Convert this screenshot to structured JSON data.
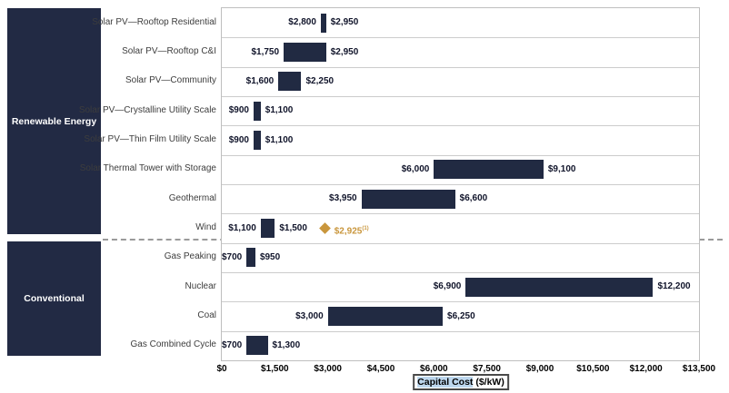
{
  "sidebar": {
    "groups": [
      {
        "label": "Renewable Energy"
      },
      {
        "label": "Conventional"
      }
    ]
  },
  "chart_data": {
    "type": "bar",
    "subtype": "horizontal-range-bar",
    "title": "",
    "xlabel": "Capital Cost ($/kW)",
    "xlabel_highlight": "Capital Cost",
    "xlabel_unit": " ($/kW)",
    "xlim": [
      0,
      13500
    ],
    "x_tick_values": [
      0,
      1500,
      3000,
      4500,
      6000,
      7500,
      9000,
      10500,
      12000,
      13500
    ],
    "x_tick_labels": [
      "$0",
      "$1,500",
      "$3,000",
      "$4,500",
      "$6,000",
      "$7,500",
      "$9,000",
      "$10,500",
      "$12,000",
      "$13,500"
    ],
    "grid": "horizontal row separators, light gray",
    "legend": "none",
    "bar_color": "#212A42",
    "marker_color": "#C9963C",
    "rows": [
      {
        "label": "Solar PV—Rooftop Residential",
        "group": "Renewable Energy",
        "min": 2800,
        "max": 2950,
        "min_label": "$2,800",
        "max_label": "$2,950"
      },
      {
        "label": "Solar PV—Rooftop C&I",
        "group": "Renewable Energy",
        "min": 1750,
        "max": 2950,
        "min_label": "$1,750",
        "max_label": "$2,950"
      },
      {
        "label": "Solar PV—Community",
        "group": "Renewable Energy",
        "min": 1600,
        "max": 2250,
        "min_label": "$1,600",
        "max_label": "$2,250"
      },
      {
        "label": "Solar PV—Crystalline Utility Scale",
        "group": "Renewable Energy",
        "min": 900,
        "max": 1100,
        "min_label": "$900",
        "max_label": "$1,100"
      },
      {
        "label": "Solar PV—Thin Film Utility Scale",
        "group": "Renewable Energy",
        "min": 900,
        "max": 1100,
        "min_label": "$900",
        "max_label": "$1,100"
      },
      {
        "label": "Solar Thermal Tower with Storage",
        "group": "Renewable Energy",
        "min": 6000,
        "max": 9100,
        "min_label": "$6,000",
        "max_label": "$9,100"
      },
      {
        "label": "Geothermal",
        "group": "Renewable Energy",
        "min": 3950,
        "max": 6600,
        "min_label": "$3,950",
        "max_label": "$6,600"
      },
      {
        "label": "Wind",
        "group": "Renewable Energy",
        "min": 1100,
        "max": 1500,
        "min_label": "$1,100",
        "max_label": "$1,500",
        "marker": {
          "value": 2925,
          "label": "$2,925",
          "sup": "(1)",
          "shape": "diamond"
        }
      },
      {
        "label": "Gas Peaking",
        "group": "Conventional",
        "min": 700,
        "max": 950,
        "min_label": "$700",
        "max_label": "$950"
      },
      {
        "label": "Nuclear",
        "group": "Conventional",
        "min": 6900,
        "max": 12200,
        "min_label": "$6,900",
        "max_label": "$12,200"
      },
      {
        "label": "Coal",
        "group": "Conventional",
        "min": 3000,
        "max": 6250,
        "min_label": "$3,000",
        "max_label": "$6,250"
      },
      {
        "label": "Gas Combined Cycle",
        "group": "Conventional",
        "min": 700,
        "max": 1300,
        "min_label": "$700",
        "max_label": "$1,300"
      }
    ]
  }
}
